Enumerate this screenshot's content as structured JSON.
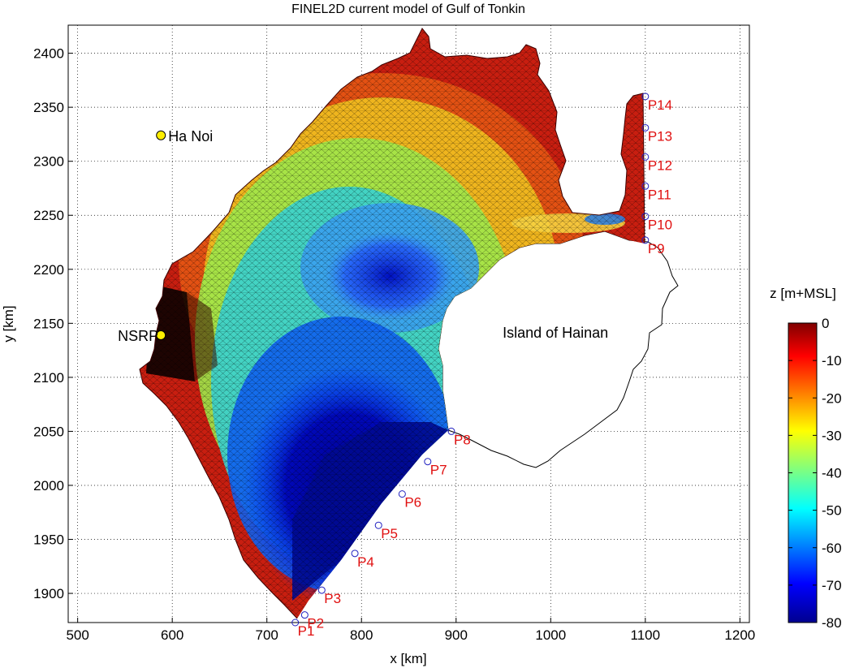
{
  "chart_data": {
    "type": "map-mesh",
    "title": "FINEL2D current model of Gulf of Tonkin",
    "xlabel": "x [km]",
    "ylabel": "y [km]",
    "xlim": [
      490,
      1210
    ],
    "ylim": [
      1873,
      2426
    ],
    "x_ticks": [
      500,
      600,
      700,
      800,
      900,
      1000,
      1100,
      1200
    ],
    "y_ticks": [
      1900,
      1950,
      2000,
      2050,
      2100,
      2150,
      2200,
      2250,
      2300,
      2350,
      2400
    ],
    "grid": true,
    "colorbar": {
      "label": "z [m+MSL]",
      "range": [
        -80,
        0
      ],
      "ticks": [
        0,
        -10,
        -20,
        -30,
        -40,
        -50,
        -60,
        -70,
        -80
      ],
      "colormap": "jet"
    },
    "places": [
      {
        "name": "Ha Noi",
        "x": 588,
        "y": 2324
      },
      {
        "name": "NSRP",
        "x": 588,
        "y": 2139
      },
      {
        "name": "Island of Hainan",
        "x": 1005,
        "y": 2142
      }
    ],
    "boundary_points": [
      {
        "label": "P1",
        "x": 730,
        "y": 1873
      },
      {
        "label": "P2",
        "x": 740,
        "y": 1880
      },
      {
        "label": "P3",
        "x": 758,
        "y": 1903
      },
      {
        "label": "P4",
        "x": 793,
        "y": 1937
      },
      {
        "label": "P5",
        "x": 818,
        "y": 1963
      },
      {
        "label": "P6",
        "x": 843,
        "y": 1992
      },
      {
        "label": "P7",
        "x": 870,
        "y": 2022
      },
      {
        "label": "P8",
        "x": 895,
        "y": 2050
      },
      {
        "label": "P9",
        "x": 1100,
        "y": 2227
      },
      {
        "label": "P10",
        "x": 1100,
        "y": 2249
      },
      {
        "label": "P11",
        "x": 1100,
        "y": 2277
      },
      {
        "label": "P12",
        "x": 1100,
        "y": 2304
      },
      {
        "label": "P13",
        "x": 1100,
        "y": 2331
      },
      {
        "label": "P14",
        "x": 1100,
        "y": 2360
      }
    ]
  },
  "colors": {
    "place_marker": "#ffee00",
    "point_label": "#e01010",
    "point_marker": "#2020c0"
  }
}
